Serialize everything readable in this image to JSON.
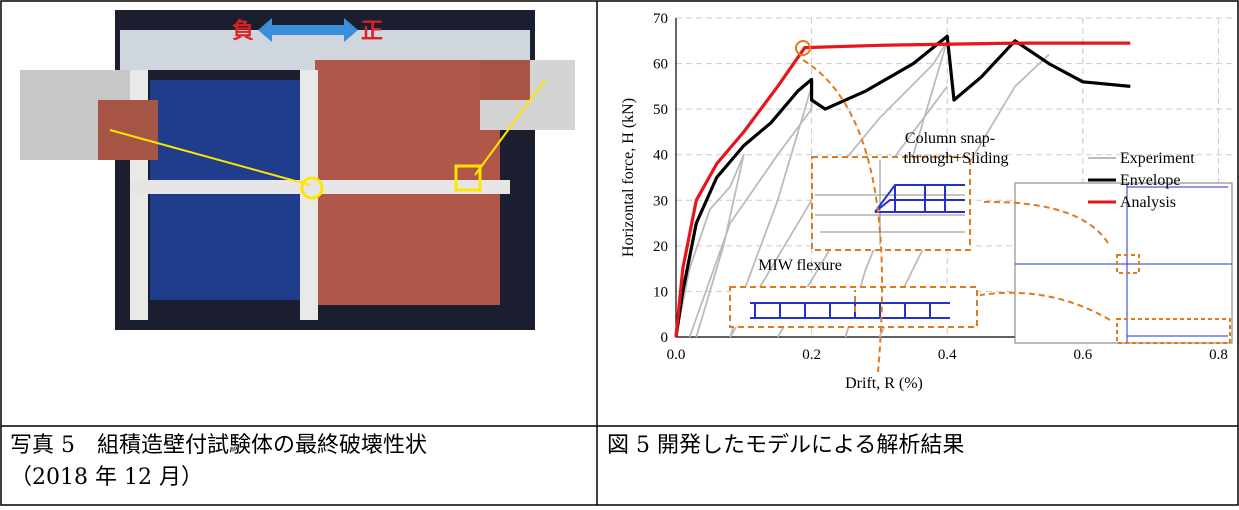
{
  "photo": {
    "labels": [
      "負",
      "正"
    ]
  },
  "figure": {
    "type": "line",
    "xlabel": "Drift, R (%)",
    "ylabel": "Horizontal force, H (kN)",
    "xlim": [
      0,
      0.82
    ],
    "ylim": [
      0,
      70
    ],
    "xticks": [
      {
        "value": 0,
        "label": "0.0"
      },
      0.2,
      0.4,
      0.6,
      0.8
    ],
    "yticks": [
      0,
      10,
      20,
      30,
      40,
      50,
      60,
      70
    ],
    "grid": true,
    "series": [
      {
        "name": "Experiment",
        "color": "#bbbbbb",
        "x": [
          0,
          0.02,
          0.05,
          0.08,
          0.1,
          0.07,
          0.04,
          0.03,
          null,
          0.02,
          0.08,
          0.15,
          0.2,
          0.2,
          0.15,
          0.1,
          0.08,
          null,
          0.08,
          0.2,
          0.3,
          0.38,
          0.4,
          0.35,
          0.28,
          0.25,
          null,
          0.15,
          0.25,
          0.35,
          0.4,
          null,
          0.3,
          0.4,
          0.5,
          0.55
        ],
        "values": [
          0,
          15,
          28,
          33,
          40,
          20,
          5,
          0,
          null,
          0,
          25,
          40,
          50,
          55,
          30,
          10,
          0,
          null,
          0,
          30,
          48,
          60,
          65,
          40,
          15,
          0,
          null,
          0,
          25,
          45,
          55,
          null,
          0,
          30,
          55,
          62
        ]
      },
      {
        "name": "Envelope",
        "color": "#000000",
        "x": [
          0,
          0.01,
          0.03,
          0.06,
          0.1,
          0.14,
          0.18,
          0.2,
          0.2,
          0.22,
          0.28,
          0.35,
          0.4,
          0.41,
          0.45,
          0.5,
          0.55,
          0.6,
          0.67
        ],
        "values": [
          0,
          10,
          25,
          35,
          42,
          47,
          54,
          56.5,
          52,
          50,
          54,
          60,
          66,
          52,
          57,
          65,
          60,
          56,
          55
        ]
      },
      {
        "name": "Analysis",
        "color": "#e8141b",
        "x": [
          0,
          0.01,
          0.03,
          0.06,
          0.1,
          0.15,
          0.19,
          0.3,
          0.5,
          0.67
        ],
        "values": [
          0,
          15,
          30,
          38,
          45,
          55,
          63.5,
          64,
          64.5,
          64.5
        ]
      }
    ],
    "annotations": [
      [
        "Column snap-",
        "through+Sliding"
      ],
      [
        "MIW flexure"
      ]
    ]
  },
  "captions": {
    "left": [
      "写真 5　組積造壁付試験体の最終破壊性状",
      "（2018 年 12 月）"
    ],
    "right": "図 5 開発したモデルによる解析結果"
  }
}
